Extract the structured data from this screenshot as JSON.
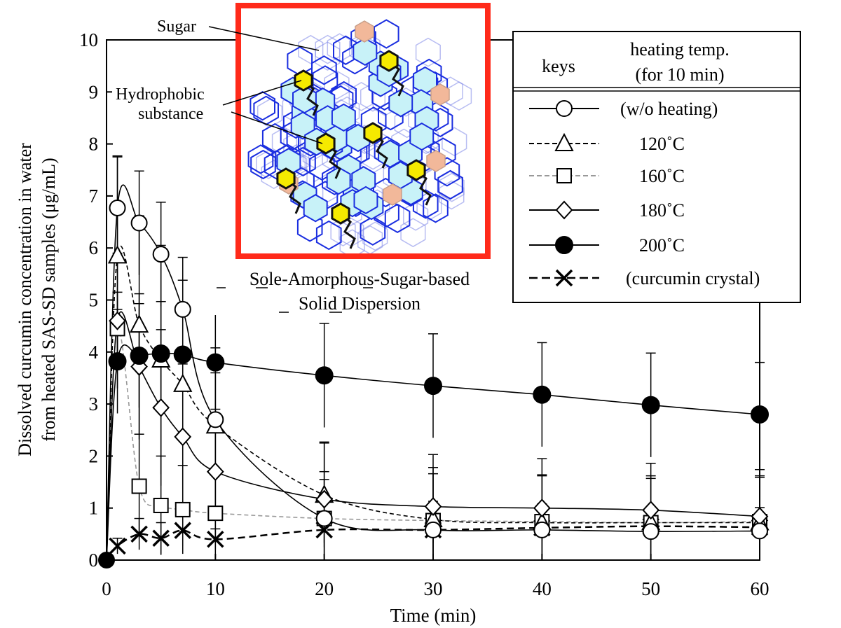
{
  "chart_data": {
    "type": "line",
    "xlabel": "Time (min)",
    "ylabel_line1": "Dissolved curcumin concentration in water",
    "ylabel_line2": "from heated SAS-SD samples (μg/mL)",
    "xlim": [
      0,
      60
    ],
    "ylim": [
      0,
      10
    ],
    "xticks": [
      0,
      10,
      20,
      30,
      40,
      50,
      60
    ],
    "yticks": [
      0,
      1,
      2,
      3,
      4,
      5,
      6,
      7,
      8,
      9,
      10
    ],
    "legend": {
      "header_keys": "keys",
      "header_temp_line1": "heating temp.",
      "header_temp_line2": "(for 10 min)",
      "placement": "top-right"
    },
    "inset": {
      "title_line1": "Sole-Amorphous-Sugar-based",
      "title_line2": "Solid Dispersion",
      "label_sugar": "Sugar",
      "label_hydrophobic_line1": "Hydrophobic",
      "label_hydrophobic_line2": "substance",
      "border_color": "#ff2a1a",
      "sugar_color": "#1a2ee0",
      "sugar_fill": "#c8f2f8",
      "hydrophobic_color": "#f5ea00",
      "faded_color": "#f2b89a"
    },
    "series": [
      {
        "name": "(w/o heating)",
        "marker": "circle",
        "line": "solid",
        "color": "#000000",
        "x": [
          0,
          1,
          3,
          5,
          7,
          10,
          20,
          30,
          40,
          50,
          60
        ],
        "y": [
          0,
          6.77,
          6.48,
          5.88,
          4.82,
          2.7,
          0.8,
          0.58,
          0.58,
          0.55,
          0.56
        ],
        "err": [
          0,
          1.0,
          1.0,
          1.0,
          1.0,
          0.9,
          0.75,
          0.55,
          0.5,
          0.45,
          0.45
        ]
      },
      {
        "name": "120˚C",
        "marker": "triangle",
        "line": "dashed",
        "color": "#000000",
        "x": [
          0,
          1,
          3,
          5,
          7,
          10,
          20,
          30,
          40,
          50,
          60
        ],
        "y": [
          0,
          5.85,
          4.52,
          3.85,
          3.38,
          2.58,
          1.25,
          0.78,
          0.72,
          0.72,
          0.72
        ],
        "err": [
          0,
          1.9,
          2.1,
          2.2,
          2.0,
          1.5,
          1.0,
          1.0,
          0.9,
          0.9,
          0.9
        ]
      },
      {
        "name": "160˚C",
        "marker": "square",
        "line": "dashed",
        "color": "#999999",
        "x": [
          0,
          1,
          3,
          5,
          7,
          10,
          20,
          30,
          40,
          50,
          60
        ],
        "y": [
          0,
          4.45,
          1.42,
          1.05,
          0.97,
          0.9,
          0.8,
          0.76,
          0.74,
          0.72,
          0.74
        ],
        "err": [
          0,
          0.7,
          1.0,
          0.95,
          0.85,
          0.85,
          0.9,
          0.9,
          0.9,
          0.85,
          0.85
        ]
      },
      {
        "name": "180˚C",
        "marker": "diamond",
        "line": "solid",
        "color": "#000000",
        "x": [
          0,
          1,
          3,
          5,
          7,
          10,
          20,
          30,
          40,
          50,
          60
        ],
        "y": [
          0,
          4.6,
          3.72,
          2.93,
          2.37,
          1.7,
          1.17,
          1.03,
          1.0,
          0.96,
          0.84
        ],
        "err": [
          0,
          1.3,
          1.4,
          1.5,
          1.4,
          1.2,
          1.1,
          1.0,
          0.95,
          0.9,
          0.9
        ]
      },
      {
        "name": "200˚C",
        "marker": "filled-circle",
        "line": "solid",
        "color": "#000000",
        "x": [
          0,
          1,
          3,
          5,
          7,
          10,
          20,
          30,
          40,
          50,
          60
        ],
        "y": [
          0,
          3.82,
          3.93,
          3.97,
          3.95,
          3.8,
          3.55,
          3.35,
          3.18,
          2.98,
          2.8
        ],
        "err": [
          0,
          1.0,
          1.0,
          1.0,
          1.0,
          1.0,
          1.0,
          1.0,
          1.0,
          1.0,
          1.0
        ]
      },
      {
        "name": "(curcumin crystal)",
        "marker": "x",
        "line": "dashed",
        "color": "#000000",
        "x": [
          0,
          1,
          3,
          5,
          7,
          10,
          20,
          30,
          40,
          50,
          60
        ],
        "y": [
          0,
          0.27,
          0.5,
          0.42,
          0.57,
          0.4,
          0.58,
          0.58,
          0.62,
          0.65,
          0.63
        ],
        "err": [
          0,
          0.15,
          0.3,
          0.3,
          0.3,
          0.2,
          0.25,
          0.25,
          0.25,
          0.25,
          0.25
        ]
      }
    ]
  }
}
